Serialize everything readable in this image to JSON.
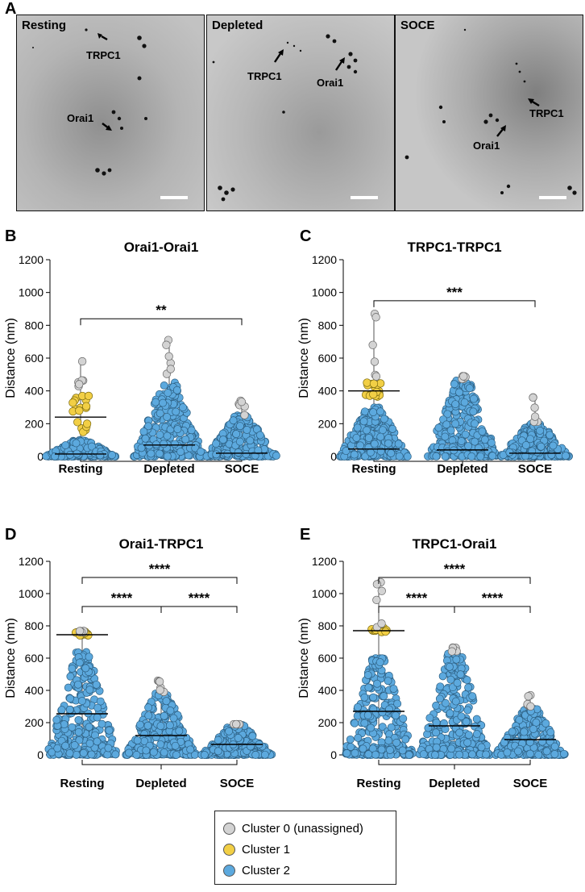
{
  "panel_letters": {
    "a": "A",
    "b": "B",
    "c": "C",
    "d": "D",
    "e": "E"
  },
  "micrographs": [
    {
      "title": "Resting",
      "labels": [
        "TRPC1",
        "Orai1"
      ]
    },
    {
      "title": "Depleted",
      "labels": [
        "TRPC1",
        "Orai1"
      ]
    },
    {
      "title": "SOCE",
      "labels": [
        "TRPC1",
        "Orai1"
      ]
    }
  ],
  "colors": {
    "cluster0": "#d3d3d3",
    "cluster1": "#f2cf45",
    "cluster2": "#5ca9de"
  },
  "legend": {
    "items": [
      {
        "label": "Cluster 0 (unassigned)",
        "color": "#d3d3d3"
      },
      {
        "label": "Cluster 1",
        "color": "#f2cf45"
      },
      {
        "label": "Cluster 2",
        "color": "#5ca9de"
      }
    ]
  },
  "chart_data": [
    {
      "id": "B",
      "type": "scatter",
      "title": "Orai1-Orai1",
      "ylabel": "Distance (nm)",
      "ylim": [
        0,
        1200
      ],
      "yticks": [
        0,
        200,
        400,
        600,
        800,
        1000,
        1200
      ],
      "categories": [
        "Resting",
        "Depleted",
        "SOCE"
      ],
      "lines": [
        [
          0,
          240
        ],
        [
          0,
          15
        ],
        [
          1,
          70
        ],
        [
          2,
          20
        ]
      ],
      "distributions": [
        {
          "category": "Resting",
          "cluster0_max": 580,
          "cluster1_range": [
            120,
            400
          ],
          "cluster2_max": 100
        },
        {
          "category": "Depleted",
          "cluster0_max": 710,
          "cluster1_range": null,
          "cluster2_max": 460
        },
        {
          "category": "SOCE",
          "cluster0_max": 340,
          "cluster1_range": null,
          "cluster2_max": 250
        }
      ],
      "significance": [
        {
          "from": "Resting",
          "to": "SOCE",
          "label": "**",
          "y": 840
        }
      ]
    },
    {
      "id": "C",
      "type": "scatter",
      "title": "TRPC1-TRPC1",
      "ylabel": "Distance (nm)",
      "ylim": [
        0,
        1200
      ],
      "yticks": [
        0,
        200,
        400,
        600,
        800,
        1000,
        1200
      ],
      "categories": [
        "Resting",
        "Depleted",
        "SOCE"
      ],
      "lines": [
        [
          0,
          400
        ],
        [
          0,
          45
        ],
        [
          1,
          40
        ],
        [
          2,
          20
        ]
      ],
      "distributions": [
        {
          "category": "Resting",
          "cluster0_max": 870,
          "cluster1_range": [
            360,
            450
          ],
          "cluster2_max": 300
        },
        {
          "category": "Depleted",
          "cluster0_max": 490,
          "cluster1_range": null,
          "cluster2_max": 470
        },
        {
          "category": "SOCE",
          "cluster0_max": 360,
          "cluster1_range": null,
          "cluster2_max": 200
        }
      ],
      "significance": [
        {
          "from": "Resting",
          "to": "SOCE",
          "label": "***",
          "y": 950
        }
      ]
    },
    {
      "id": "D",
      "type": "scatter",
      "title": "Orai1-TRPC1",
      "ylabel": "Distance (nm)",
      "ylim": [
        0,
        1200
      ],
      "yticks": [
        0,
        200,
        400,
        600,
        800,
        1000,
        1200
      ],
      "categories": [
        "Resting",
        "Depleted",
        "SOCE"
      ],
      "lines": [
        [
          0,
          745
        ],
        [
          0,
          255
        ],
        [
          1,
          120
        ],
        [
          2,
          65
        ]
      ],
      "distributions": [
        {
          "category": "Resting",
          "cluster0_max": 760,
          "cluster1_range": [
            740,
            770
          ],
          "cluster2_max": 640
        },
        {
          "category": "Depleted",
          "cluster0_max": 460,
          "cluster1_range": null,
          "cluster2_max": 380
        },
        {
          "category": "SOCE",
          "cluster0_max": 190,
          "cluster1_range": null,
          "cluster2_max": 190
        }
      ],
      "significance": [
        {
          "from": "Resting",
          "to": "SOCE",
          "label": "****",
          "y": 1100
        },
        {
          "from": "Resting",
          "to": "SOCE",
          "label": "****",
          "y": 920,
          "split_at": "Depleted"
        }
      ]
    },
    {
      "id": "E",
      "type": "scatter",
      "title": "TRPC1-Orai1",
      "ylabel": "Distance (nm)",
      "ylim": [
        0,
        1200
      ],
      "yticks": [
        0,
        200,
        400,
        600,
        800,
        1000,
        1200
      ],
      "categories": [
        "Resting",
        "Depleted",
        "SOCE"
      ],
      "lines": [
        [
          0,
          770
        ],
        [
          0,
          270
        ],
        [
          1,
          180
        ],
        [
          2,
          95
        ]
      ],
      "distributions": [
        {
          "category": "Resting",
          "cluster0_max": 1070,
          "cluster1_range": [
            760,
            790
          ],
          "cluster2_max": 600
        },
        {
          "category": "Depleted",
          "cluster0_max": 665,
          "cluster1_range": null,
          "cluster2_max": 640
        },
        {
          "category": "SOCE",
          "cluster0_max": 370,
          "cluster1_range": null,
          "cluster2_max": 290
        }
      ],
      "significance": [
        {
          "from": "Resting",
          "to": "SOCE",
          "label": "****",
          "y": 1100
        },
        {
          "from": "Resting",
          "to": "SOCE",
          "label": "****",
          "y": 920,
          "split_at": "Depleted"
        }
      ]
    }
  ]
}
